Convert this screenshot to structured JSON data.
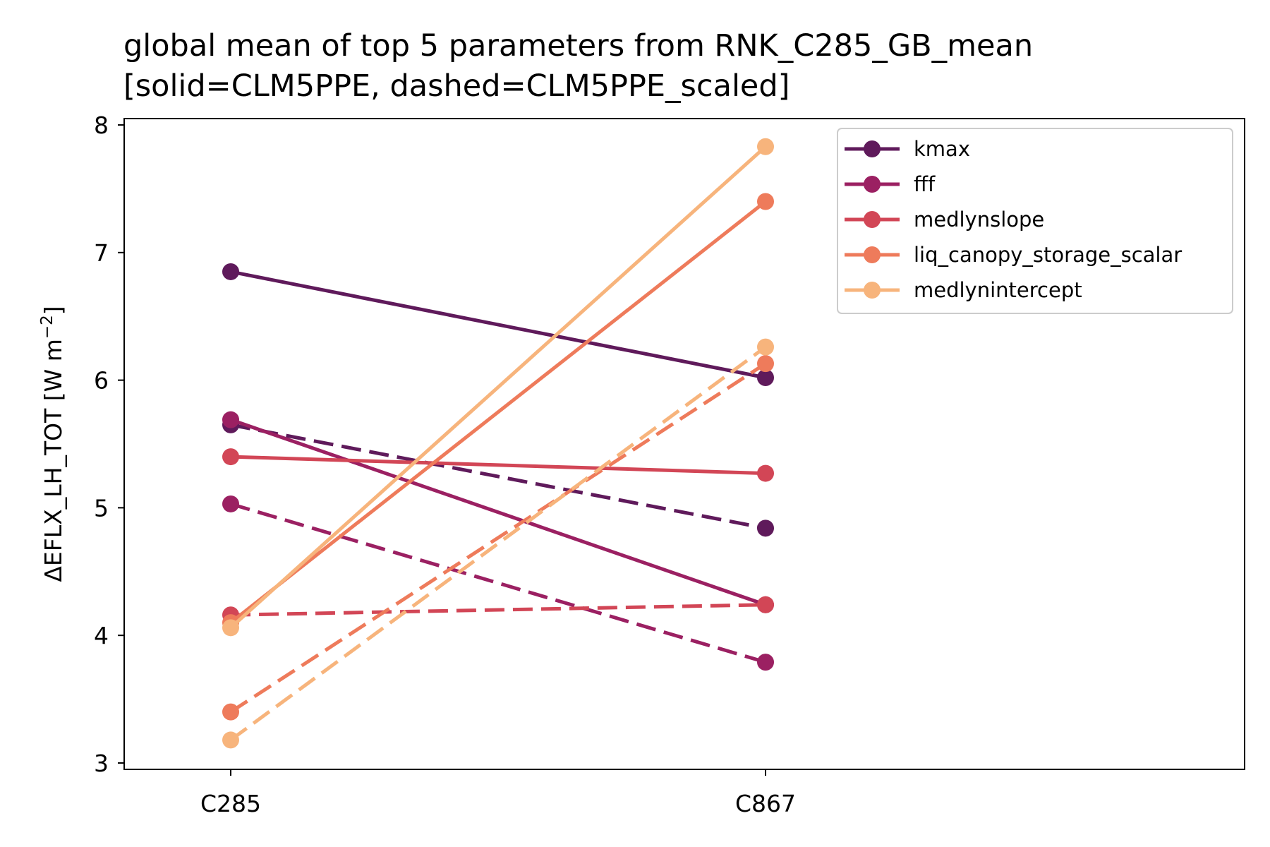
{
  "chart_data": {
    "type": "line",
    "title_line1": "global mean of top 5 parameters from RNK_C285_GB_mean",
    "title_line2": "[solid=CLM5PPE, dashed=CLM5PPE_scaled]",
    "xlabel": "",
    "ylabel_prefix": "ΔEFLX_LH_TOT [W m",
    "ylabel_sup": "−2",
    "ylabel_suffix": "]",
    "categories": [
      "C285",
      "C867"
    ],
    "ylim": [
      2.95,
      8.05
    ],
    "yticks": [
      3,
      4,
      5,
      6,
      7,
      8
    ],
    "legend_position": "top-right",
    "grid": false,
    "series": [
      {
        "name": "kmax",
        "color": "#5f1a5b",
        "solid": [
          6.85,
          6.02
        ],
        "dashed": [
          5.65,
          4.84
        ]
      },
      {
        "name": "fff",
        "color": "#9b2062",
        "solid": [
          5.69,
          4.24
        ],
        "dashed": [
          5.03,
          3.79
        ]
      },
      {
        "name": "medlynslope",
        "color": "#d24656",
        "solid": [
          5.4,
          5.27
        ],
        "dashed": [
          4.16,
          4.24
        ]
      },
      {
        "name": "liq_canopy_storage_scalar",
        "color": "#ee7b5b",
        "solid": [
          4.1,
          7.4
        ],
        "dashed": [
          3.4,
          6.13
        ]
      },
      {
        "name": "medlynintercept",
        "color": "#f7b47c",
        "solid": [
          4.06,
          7.83
        ],
        "dashed": [
          3.18,
          6.26
        ]
      }
    ]
  }
}
